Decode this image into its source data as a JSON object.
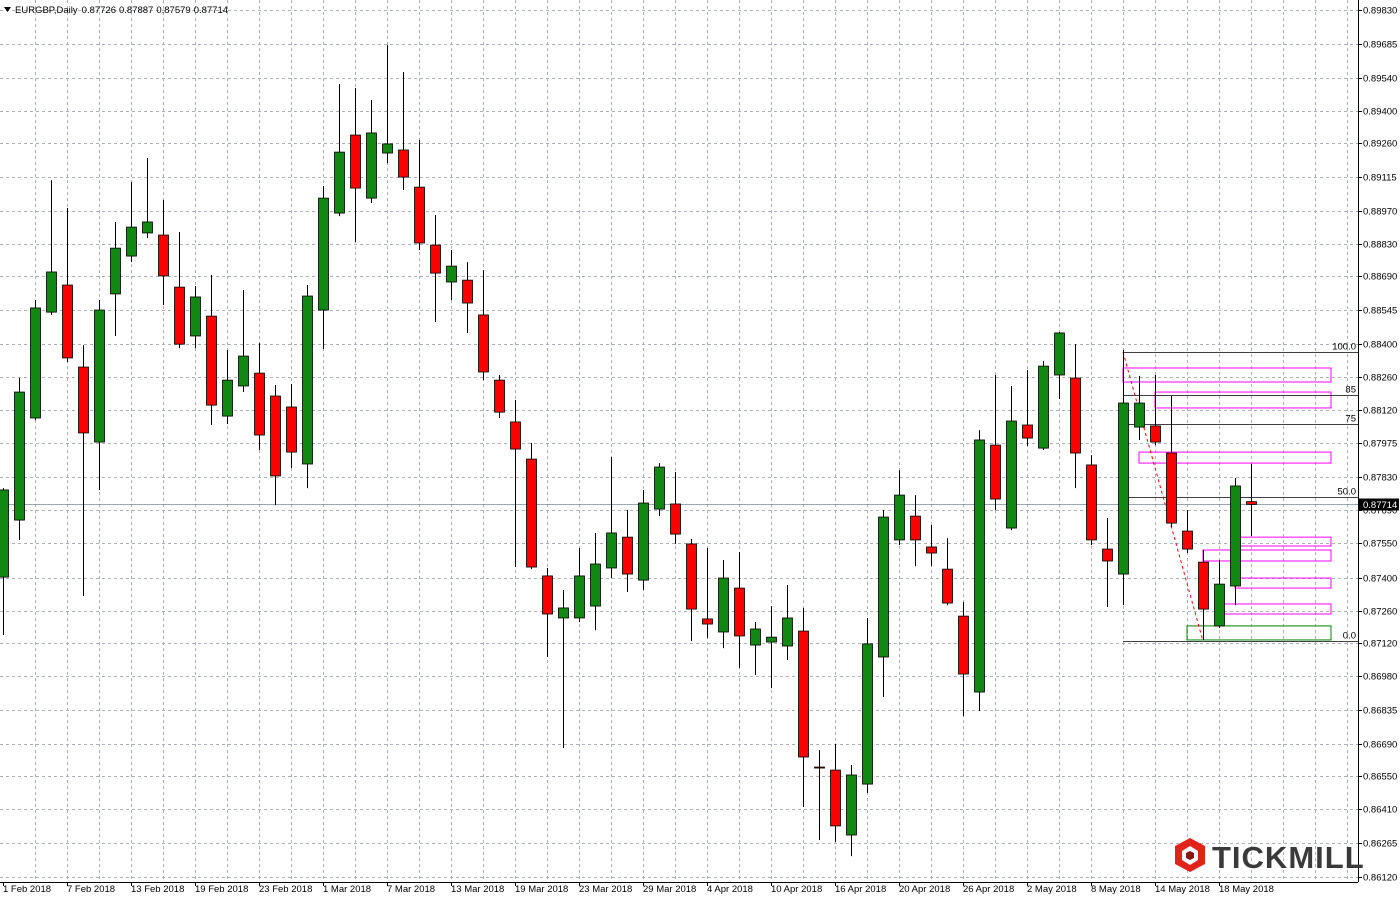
{
  "chart_data": {
    "type": "candlestick",
    "title": "EURGBP,Daily",
    "logo": "TICKMILL",
    "up_color": "#118811",
    "down_color": "#ff0000",
    "grid": true,
    "categories": [
      "1 Feb 2018",
      null,
      null,
      null,
      "7 Feb 2018",
      null,
      null,
      null,
      "13 Feb 2018",
      null,
      null,
      null,
      "19 Feb 2018",
      null,
      null,
      null,
      "23 Feb 2018",
      null,
      null,
      null,
      "1 Mar 2018",
      null,
      null,
      null,
      "7 Mar 2018",
      null,
      null,
      null,
      "13 Mar 2018",
      null,
      null,
      null,
      "19 Mar 2018",
      null,
      null,
      null,
      "23 Mar 2018",
      null,
      null,
      null,
      "29 Mar 2018",
      null,
      null,
      null,
      "4 Apr 2018",
      null,
      null,
      null,
      "10 Apr 2018",
      null,
      null,
      null,
      "16 Apr 2018",
      null,
      null,
      null,
      "20 Apr 2018",
      null,
      null,
      null,
      "26 Apr 2018",
      null,
      null,
      null,
      "2 May 2018",
      null,
      null,
      null,
      "8 May 2018",
      null,
      null,
      null,
      "14 May 2018",
      null,
      null,
      null,
      "18 May 2018",
      null,
      null
    ],
    "open": [
      0.87403,
      0.87647,
      0.88084,
      0.88537,
      0.88653,
      0.88302,
      0.87981,
      0.88615,
      0.88777,
      0.88876,
      0.88867,
      0.88644,
      0.88435,
      0.8852,
      0.88092,
      0.88221,
      0.88276,
      0.88178,
      0.88131,
      0.87887,
      0.88546,
      0.88961,
      0.89295,
      0.89025,
      0.89218,
      0.89231,
      0.89072,
      0.88824,
      0.88666,
      0.88674,
      0.88525,
      0.88246,
      0.88067,
      0.87908,
      0.87408,
      0.87228,
      0.87228,
      0.87279,
      0.87442,
      0.87574,
      0.8739,
      0.87694,
      0.87716,
      0.87545,
      0.87224,
      0.87168,
      0.87356,
      0.87112,
      0.87125,
      0.87108,
      0.87172,
      0.8659,
      0.86577,
      0.86299,
      0.86517,
      0.87061,
      0.87562,
      0.87664,
      0.87532,
      0.87437,
      0.87236,
      0.86911,
      0.87968,
      0.87613,
      0.88054,
      0.87955,
      0.88268,
      0.88255,
      0.87883,
      0.87523,
      0.87416,
      0.88045,
      0.8805,
      0.87934,
      0.876,
      0.87467,
      0.87194,
      0.87365,
      0.87726
    ],
    "high": [
      0.87784,
      0.88255,
      0.88589,
      0.89102,
      0.88983,
      0.88396,
      0.88589,
      0.88923,
      0.89094,
      0.89197,
      0.89017,
      0.8888,
      0.88649,
      0.88696,
      0.88375,
      0.88632,
      0.88405,
      0.88225,
      0.88229,
      0.88653,
      0.89077,
      0.89513,
      0.89496,
      0.89445,
      0.8968,
      0.89565,
      0.89274,
      0.88953,
      0.88803,
      0.88751,
      0.88717,
      0.88268,
      0.88161,
      0.87977,
      0.87442,
      0.87348,
      0.87527,
      0.87592,
      0.87917,
      0.8769,
      0.87776,
      0.87891,
      0.87853,
      0.87566,
      0.87527,
      0.87476,
      0.8751,
      0.87211,
      0.87279,
      0.87369,
      0.87271,
      0.86663,
      0.86689,
      0.86599,
      0.87228,
      0.8769,
      0.87861,
      0.87754,
      0.87626,
      0.8757,
      0.87296,
      0.88032,
      0.88268,
      0.88221,
      0.88289,
      0.88328,
      0.88452,
      0.884,
      0.87925,
      0.87656,
      0.88375,
      0.88264,
      0.88268,
      0.88178,
      0.8769,
      0.87519,
      0.87476,
      0.87827,
      0.87887
    ],
    "low": [
      0.87155,
      0.87562,
      0.88075,
      0.88525,
      0.88323,
      0.87322,
      0.87776,
      0.88435,
      0.88751,
      0.88854,
      0.88567,
      0.88383,
      0.88383,
      0.88054,
      0.88058,
      0.88195,
      0.87947,
      0.87711,
      0.8787,
      0.87784,
      0.88379,
      0.88948,
      0.88837,
      0.89004,
      0.89175,
      0.8906,
      0.88803,
      0.88495,
      0.88589,
      0.88448,
      0.88246,
      0.88084,
      0.87446,
      0.87437,
      0.87061,
      0.86671,
      0.87211,
      0.87176,
      0.87399,
      0.87339,
      0.87348,
      0.87664,
      0.87545,
      0.87129,
      0.87142,
      0.87099,
      0.87014,
      0.86984,
      0.86928,
      0.87048,
      0.86419,
      0.86278,
      0.86269,
      0.86209,
      0.86479,
      0.8689,
      0.8754,
      0.8745,
      0.8745,
      0.87283,
      0.86808,
      0.8683,
      0.8769,
      0.87604,
      0.87964,
      0.87947,
      0.88165,
      0.87784,
      0.8754,
      0.87275,
      0.87283,
      0.8799,
      0.87968,
      0.87617,
      0.87506,
      0.87134,
      0.87185,
      0.87283,
      0.87579
    ],
    "close": [
      0.87776,
      0.88195,
      0.88555,
      0.88709,
      0.88341,
      0.8802,
      0.88546,
      0.88811,
      0.88901,
      0.88923,
      0.88692,
      0.884,
      0.88602,
      0.88139,
      0.88246,
      0.88349,
      0.88011,
      0.87836,
      0.87938,
      0.88606,
      0.89025,
      0.89222,
      0.89068,
      0.89304,
      0.89257,
      0.89115,
      0.88833,
      0.88704,
      0.88734,
      0.88576,
      0.88281,
      0.88109,
      0.87951,
      0.87446,
      0.87245,
      0.87271,
      0.87408,
      0.87459,
      0.87592,
      0.87416,
      0.8772,
      0.87874,
      0.87587,
      0.87266,
      0.87202,
      0.87399,
      0.87151,
      0.87181,
      0.87146,
      0.87228,
      0.86633,
      0.86586,
      0.86338,
      0.86556,
      0.87117,
      0.8766,
      0.87754,
      0.87562,
      0.87506,
      0.87292,
      0.86988,
      0.8799,
      0.87737,
      0.88071,
      0.87998,
      0.88306,
      0.88448,
      0.87934,
      0.87562,
      0.87472,
      0.88148,
      0.88148,
      0.87981,
      0.87634,
      0.87523,
      0.87266,
      0.87373,
      0.87793,
      0.87714
    ],
    "ylim": [
      0.86098,
      0.89873
    ],
    "yticks": [
      {
        "value": 0.8983,
        "label": "0.89830"
      },
      0.89685,
      {
        "value": 0.8954,
        "label": "0.89540"
      },
      {
        "value": 0.894,
        "label": "0.89400"
      },
      {
        "value": 0.8926,
        "label": "0.89260"
      },
      0.89115,
      {
        "value": 0.8897,
        "label": "0.88970"
      },
      {
        "value": 0.8883,
        "label": "0.88830"
      },
      {
        "value": 0.8869,
        "label": "0.88690"
      },
      0.88545,
      {
        "value": 0.884,
        "label": "0.88400"
      },
      {
        "value": 0.8826,
        "label": "0.88260"
      },
      {
        "value": 0.8812,
        "label": "0.88120"
      },
      0.87975,
      {
        "value": 0.8783,
        "label": "0.87830"
      },
      {
        "value": 0.8769,
        "label": "0.87690"
      },
      {
        "value": 0.8755,
        "label": "0.87550"
      },
      {
        "value": 0.874,
        "label": "0.87400"
      },
      {
        "value": 0.8726,
        "label": "0.87260"
      },
      {
        "value": 0.8712,
        "label": "0.87120"
      },
      {
        "value": 0.8698,
        "label": "0.86980"
      },
      0.86835,
      {
        "value": 0.8669,
        "label": "0.86690"
      },
      {
        "value": 0.8655,
        "label": "0.86550"
      },
      {
        "value": 0.8641,
        "label": "0.86410"
      },
      0.86265,
      {
        "value": 0.8612,
        "label": "0.86120"
      }
    ],
    "fibonacci": {
      "high": 0.88366,
      "low": 0.87129,
      "color": "#ff0000",
      "levels": [
        {
          "value": 100,
          "label": "100.0"
        },
        85,
        75,
        {
          "value": 50,
          "label": "50.0"
        },
        {
          "value": 0,
          "label": "0.0"
        }
      ]
    },
    "zones": [
      {
        "low": 0.88238,
        "high": 0.88298,
        "color": "#ff00ff"
      },
      {
        "low": 0.88127,
        "high": 0.88195,
        "color": "#ff00ff"
      },
      {
        "low": 0.87891,
        "high": 0.87938,
        "color": "#ff00ff"
      },
      {
        "low": 0.87536,
        "high": 0.87574,
        "color": "#ff00ff"
      },
      {
        "low": 0.87472,
        "high": 0.87519,
        "color": "#ff00ff"
      },
      {
        "low": 0.87356,
        "high": 0.87399,
        "color": "#ff00ff"
      },
      {
        "low": 0.87245,
        "high": 0.87288,
        "color": "#ff00ff"
      },
      {
        "low": 0.87134,
        "high": 0.87194,
        "color": "#008000"
      }
    ]
  }
}
